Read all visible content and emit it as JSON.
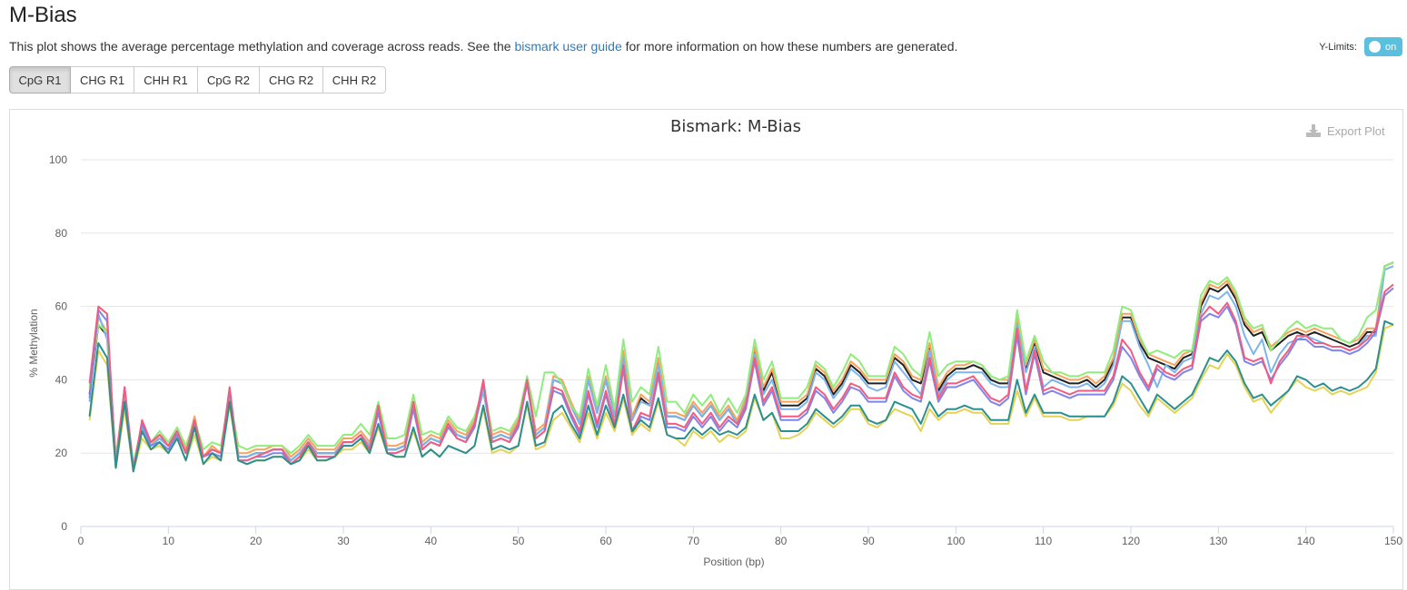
{
  "page": {
    "title": "M-Bias",
    "description_pre": "This plot shows the average percentage methylation and coverage across reads. See the ",
    "description_link": "bismark user guide",
    "description_post": " for more information on how these numbers are generated.",
    "ylimits_label": "Y-Limits:",
    "ylimits_toggle": "on",
    "export_label": "Export Plot"
  },
  "tabs": [
    {
      "label": "CpG R1",
      "active": true
    },
    {
      "label": "CHG R1",
      "active": false
    },
    {
      "label": "CHH R1",
      "active": false
    },
    {
      "label": "CpG R2",
      "active": false
    },
    {
      "label": "CHG R2",
      "active": false
    },
    {
      "label": "CHH R2",
      "active": false
    }
  ],
  "chart_data": {
    "type": "line",
    "title": "Bismark: M-Bias",
    "xlabel": "Position (bp)",
    "ylabel": "% Methylation",
    "xlim": [
      0,
      150
    ],
    "ylim": [
      0,
      100
    ],
    "xticks": [
      0,
      10,
      20,
      30,
      40,
      50,
      60,
      70,
      80,
      90,
      100,
      110,
      120,
      130,
      140,
      150
    ],
    "yticks": [
      0,
      20,
      40,
      60,
      80,
      100
    ],
    "grid": true,
    "series": [
      {
        "color": "#222222",
        "values": [
          36,
          55,
          52,
          18,
          36,
          16,
          27,
          22,
          24,
          22,
          26,
          20,
          29,
          19,
          21,
          20,
          36,
          19,
          19,
          20,
          20,
          21,
          21,
          18,
          20,
          23,
          20,
          20,
          20,
          23,
          23,
          25,
          22,
          32,
          21,
          21,
          22,
          33,
          22,
          24,
          23,
          28,
          25,
          24,
          28,
          37,
          24,
          25,
          24,
          28,
          39,
          25,
          27,
          40,
          39,
          33,
          28,
          40,
          31,
          40,
          30,
          47,
          29,
          35,
          33,
          45,
          30,
          30,
          29,
          33,
          30,
          33,
          29,
          32,
          28,
          34,
          48,
          37,
          42,
          33,
          33,
          33,
          35,
          43,
          41,
          36,
          39,
          44,
          42,
          39,
          39,
          39,
          46,
          44,
          40,
          39,
          49,
          37,
          41,
          43,
          43,
          44,
          43,
          40,
          39,
          39,
          56,
          43,
          50,
          42,
          41,
          40,
          39,
          39,
          40,
          38,
          40,
          45,
          57,
          57,
          50,
          46,
          45,
          44,
          43,
          46,
          47,
          60,
          65,
          64,
          66,
          62,
          55,
          52,
          53,
          48,
          50,
          52,
          53,
          52,
          53,
          52,
          51,
          50,
          49,
          50,
          53,
          53,
          71,
          72
        ]
      },
      {
        "color": "#f7a35c",
        "values": [
          37,
          57,
          53,
          19,
          37,
          16,
          28,
          22,
          25,
          23,
          27,
          21,
          30,
          19,
          22,
          20,
          36,
          20,
          20,
          21,
          21,
          22,
          22,
          19,
          21,
          24,
          21,
          21,
          21,
          24,
          24,
          26,
          23,
          33,
          22,
          22,
          23,
          34,
          23,
          25,
          24,
          29,
          26,
          25,
          29,
          38,
          25,
          26,
          25,
          29,
          40,
          26,
          28,
          41,
          40,
          34,
          29,
          41,
          32,
          41,
          31,
          48,
          30,
          36,
          34,
          46,
          31,
          31,
          30,
          34,
          31,
          34,
          30,
          33,
          29,
          35,
          49,
          38,
          43,
          34,
          34,
          34,
          36,
          44,
          42,
          37,
          40,
          45,
          43,
          40,
          40,
          40,
          47,
          45,
          41,
          40,
          50,
          38,
          42,
          44,
          44,
          45,
          44,
          41,
          40,
          40,
          57,
          44,
          51,
          43,
          42,
          41,
          40,
          40,
          41,
          39,
          41,
          46,
          58,
          58,
          51,
          47,
          46,
          45,
          44,
          47,
          48,
          61,
          66,
          65,
          67,
          63,
          56,
          53,
          54,
          49,
          51,
          53,
          54,
          53,
          54,
          53,
          52,
          51,
          50,
          51,
          54,
          54,
          71,
          72
        ]
      },
      {
        "color": "#7cb5ec",
        "values": [
          34,
          58,
          51,
          17,
          35,
          16,
          27,
          22,
          24,
          22,
          26,
          20,
          29,
          19,
          21,
          20,
          35,
          19,
          19,
          20,
          20,
          21,
          21,
          18,
          20,
          23,
          20,
          20,
          20,
          23,
          23,
          25,
          22,
          32,
          21,
          21,
          22,
          33,
          22,
          24,
          23,
          28,
          25,
          24,
          28,
          37,
          24,
          25,
          24,
          28,
          39,
          25,
          27,
          40,
          39,
          33,
          28,
          40,
          31,
          40,
          30,
          46,
          29,
          34,
          33,
          44,
          30,
          30,
          29,
          33,
          30,
          33,
          29,
          32,
          28,
          34,
          47,
          36,
          40,
          32,
          32,
          32,
          34,
          42,
          40,
          35,
          38,
          43,
          41,
          38,
          37,
          38,
          45,
          42,
          39,
          36,
          48,
          36,
          40,
          42,
          42,
          42,
          42,
          39,
          38,
          38,
          55,
          42,
          49,
          38,
          40,
          39,
          38,
          38,
          39,
          37,
          39,
          44,
          56,
          56,
          49,
          44,
          38,
          44,
          42,
          45,
          46,
          58,
          63,
          62,
          64,
          60,
          52,
          47,
          51,
          42,
          47,
          50,
          51,
          52,
          51,
          50,
          49,
          49,
          48,
          49,
          52,
          52,
          70,
          71
        ]
      },
      {
        "color": "#90ed7d",
        "values": [
          38,
          55,
          53,
          18,
          37,
          17,
          28,
          23,
          26,
          23,
          27,
          22,
          29,
          21,
          23,
          22,
          35,
          22,
          21,
          22,
          22,
          22,
          22,
          20,
          22,
          25,
          22,
          22,
          22,
          25,
          25,
          28,
          25,
          34,
          24,
          24,
          25,
          36,
          25,
          26,
          25,
          30,
          27,
          26,
          30,
          38,
          26,
          27,
          26,
          30,
          41,
          30,
          42,
          42,
          39,
          33,
          30,
          43,
          33,
          44,
          32,
          51,
          34,
          38,
          36,
          49,
          34,
          34,
          31,
          36,
          33,
          36,
          31,
          35,
          31,
          36,
          51,
          40,
          45,
          35,
          35,
          35,
          38,
          45,
          43,
          38,
          42,
          47,
          45,
          41,
          41,
          41,
          49,
          47,
          43,
          41,
          53,
          41,
          44,
          45,
          45,
          45,
          44,
          41,
          40,
          41,
          59,
          45,
          52,
          45,
          42,
          42,
          41,
          41,
          42,
          42,
          42,
          48,
          60,
          59,
          52,
          47,
          48,
          47,
          46,
          48,
          48,
          63,
          67,
          66,
          68,
          64,
          57,
          54,
          55,
          48,
          51,
          54,
          56,
          54,
          55,
          54,
          54,
          51,
          50,
          52,
          57,
          59,
          71,
          72
        ]
      },
      {
        "color": "#8085e9",
        "values": [
          35,
          59,
          56,
          17,
          38,
          16,
          28,
          22,
          23,
          21,
          25,
          20,
          28,
          19,
          20,
          19,
          37,
          18,
          18,
          19,
          19,
          20,
          20,
          17,
          19,
          22,
          19,
          19,
          19,
          22,
          22,
          24,
          21,
          31,
          20,
          20,
          21,
          32,
          21,
          23,
          22,
          27,
          24,
          23,
          27,
          39,
          23,
          24,
          23,
          27,
          39,
          24,
          26,
          37,
          36,
          30,
          25,
          36,
          27,
          36,
          27,
          43,
          25,
          30,
          29,
          41,
          27,
          27,
          26,
          30,
          27,
          30,
          26,
          29,
          27,
          32,
          45,
          33,
          37,
          29,
          29,
          29,
          31,
          37,
          35,
          31,
          34,
          38,
          37,
          34,
          34,
          34,
          41,
          37,
          35,
          34,
          45,
          34,
          38,
          38,
          39,
          40,
          37,
          34,
          33,
          35,
          52,
          36,
          47,
          36,
          37,
          36,
          35,
          36,
          36,
          36,
          36,
          40,
          49,
          46,
          41,
          37,
          43,
          41,
          40,
          42,
          43,
          56,
          58,
          57,
          60,
          55,
          45,
          44,
          45,
          40,
          44,
          47,
          51,
          51,
          49,
          49,
          48,
          48,
          47,
          48,
          50,
          53,
          63,
          65
        ]
      },
      {
        "color": "#f15c80",
        "values": [
          39,
          60,
          58,
          16,
          38,
          15,
          29,
          23,
          25,
          22,
          26,
          20,
          29,
          19,
          21,
          20,
          38,
          18,
          18,
          19,
          20,
          21,
          21,
          17,
          19,
          23,
          19,
          19,
          19,
          23,
          23,
          25,
          21,
          33,
          20,
          20,
          21,
          34,
          21,
          23,
          22,
          28,
          24,
          23,
          28,
          40,
          23,
          24,
          23,
          28,
          40,
          24,
          26,
          38,
          37,
          31,
          26,
          37,
          28,
          37,
          28,
          44,
          26,
          31,
          30,
          42,
          28,
          28,
          27,
          31,
          28,
          31,
          27,
          30,
          28,
          33,
          46,
          34,
          38,
          30,
          30,
          30,
          32,
          38,
          36,
          32,
          35,
          39,
          38,
          35,
          35,
          35,
          42,
          38,
          36,
          35,
          46,
          35,
          39,
          39,
          40,
          41,
          38,
          35,
          34,
          36,
          54,
          37,
          48,
          37,
          38,
          37,
          36,
          37,
          37,
          37,
          37,
          41,
          51,
          48,
          42,
          38,
          44,
          42,
          41,
          43,
          44,
          57,
          60,
          58,
          61,
          56,
          46,
          45,
          46,
          39,
          45,
          48,
          52,
          52,
          50,
          50,
          49,
          49,
          48,
          49,
          51,
          54,
          64,
          66
        ]
      },
      {
        "color": "#e4d354",
        "values": [
          29,
          48,
          44,
          16,
          32,
          15,
          24,
          21,
          22,
          20,
          24,
          18,
          25,
          17,
          19,
          18,
          33,
          18,
          17,
          18,
          18,
          19,
          19,
          17,
          18,
          21,
          18,
          18,
          19,
          21,
          21,
          23,
          20,
          27,
          20,
          19,
          19,
          26,
          19,
          21,
          19,
          22,
          21,
          20,
          22,
          32,
          20,
          21,
          20,
          22,
          33,
          21,
          22,
          29,
          31,
          27,
          23,
          31,
          24,
          31,
          26,
          35,
          25,
          28,
          26,
          34,
          25,
          24,
          22,
          26,
          24,
          26,
          23,
          25,
          24,
          26,
          35,
          29,
          31,
          24,
          24,
          25,
          27,
          31,
          29,
          27,
          29,
          32,
          32,
          28,
          27,
          29,
          32,
          31,
          30,
          26,
          32,
          29,
          31,
          31,
          32,
          31,
          31,
          28,
          28,
          28,
          37,
          30,
          35,
          30,
          30,
          30,
          29,
          29,
          30,
          30,
          30,
          33,
          39,
          37,
          33,
          30,
          35,
          33,
          31,
          33,
          35,
          40,
          44,
          43,
          47,
          44,
          38,
          34,
          35,
          31,
          34,
          37,
          40,
          38,
          37,
          38,
          36,
          37,
          36,
          37,
          38,
          42,
          54,
          55
        ]
      },
      {
        "color": "#2b908f",
        "values": [
          30,
          50,
          46,
          16,
          34,
          15,
          26,
          21,
          23,
          20,
          24,
          18,
          27,
          17,
          20,
          18,
          34,
          18,
          17,
          18,
          18,
          19,
          19,
          17,
          18,
          22,
          18,
          18,
          19,
          22,
          22,
          24,
          20,
          28,
          20,
          19,
          19,
          27,
          19,
          21,
          19,
          22,
          21,
          20,
          22,
          33,
          21,
          22,
          21,
          22,
          34,
          22,
          23,
          31,
          33,
          28,
          24,
          33,
          25,
          33,
          27,
          36,
          26,
          29,
          27,
          35,
          25,
          24,
          24,
          27,
          25,
          27,
          25,
          26,
          25,
          27,
          36,
          29,
          31,
          26,
          26,
          26,
          28,
          32,
          30,
          28,
          30,
          33,
          33,
          29,
          28,
          29,
          34,
          33,
          32,
          28,
          34,
          30,
          32,
          32,
          33,
          32,
          32,
          29,
          29,
          29,
          40,
          31,
          36,
          31,
          31,
          31,
          30,
          30,
          30,
          30,
          30,
          34,
          41,
          39,
          35,
          31,
          36,
          34,
          32,
          34,
          36,
          41,
          46,
          45,
          48,
          45,
          39,
          35,
          36,
          33,
          35,
          37,
          41,
          40,
          38,
          39,
          37,
          38,
          37,
          38,
          40,
          43,
          56,
          55
        ]
      }
    ]
  }
}
